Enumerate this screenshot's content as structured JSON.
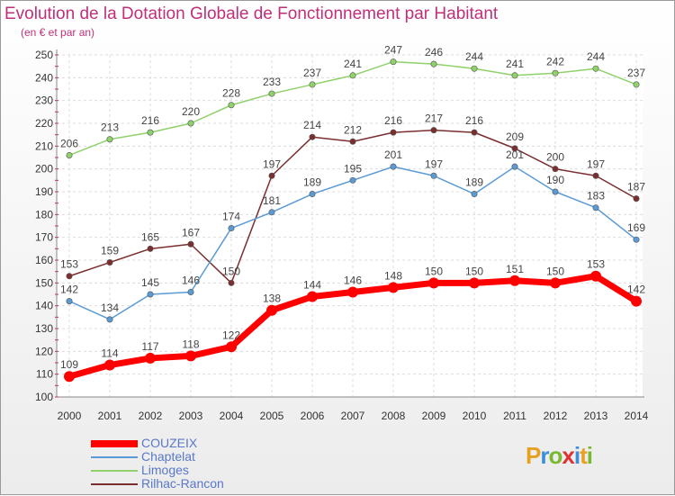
{
  "title": "Evolution de la Dotation Globale de Fonctionnement par Habitant",
  "subtitle": "(en € et par an)",
  "logo": {
    "letters": [
      "P",
      "r",
      "o",
      "x",
      "i",
      "t",
      "i"
    ],
    "colors": [
      "#e8a020",
      "#3a8fd8",
      "#7ab830",
      "#e03030",
      "#3a8fd8",
      "#e8a020",
      "#7ab830"
    ]
  },
  "chart_data": {
    "type": "line",
    "categories": [
      "2000",
      "2001",
      "2002",
      "2003",
      "2004",
      "2005",
      "2006",
      "2007",
      "2008",
      "2009",
      "2010",
      "2011",
      "2012",
      "2013",
      "2014"
    ],
    "ylim": [
      100,
      250
    ],
    "yticks": [
      100,
      110,
      120,
      130,
      140,
      150,
      160,
      170,
      180,
      190,
      200,
      210,
      220,
      230,
      240,
      250
    ],
    "grid": true,
    "legend_position": "bottom-left",
    "series": [
      {
        "name": "COUZEIX",
        "color": "#ff0000",
        "values": [
          109,
          114,
          117,
          118,
          122,
          138,
          144,
          146,
          148,
          150,
          150,
          151,
          150,
          153,
          142
        ]
      },
      {
        "name": "Chaptelat",
        "color": "#5b9bd5",
        "values": [
          142,
          134,
          145,
          146,
          174,
          181,
          189,
          195,
          201,
          197,
          189,
          201,
          190,
          183,
          169
        ]
      },
      {
        "name": "Limoges",
        "color": "#8fd16a",
        "values": [
          206,
          213,
          216,
          220,
          228,
          233,
          237,
          241,
          247,
          246,
          244,
          241,
          242,
          244,
          237
        ]
      },
      {
        "name": "Rilhac-Rancon",
        "color": "#7a2e2e",
        "values": [
          153,
          159,
          165,
          167,
          150,
          197,
          214,
          212,
          216,
          217,
          216,
          209,
          200,
          197,
          187
        ]
      }
    ]
  }
}
